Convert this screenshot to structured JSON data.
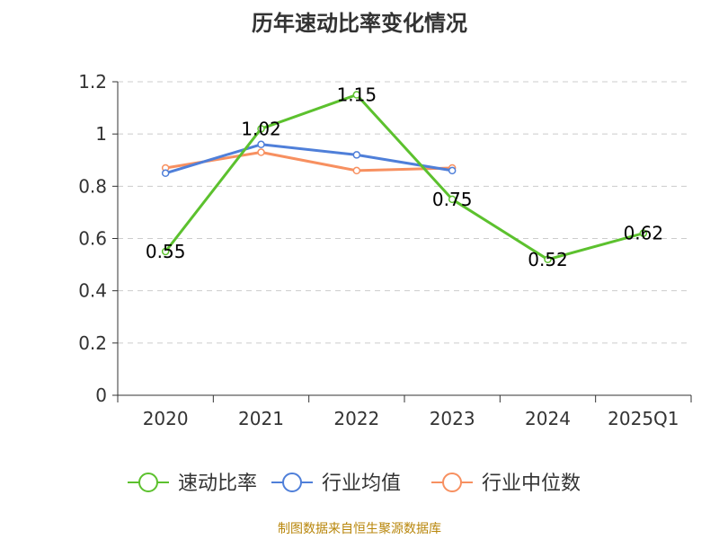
{
  "chart_data": {
    "type": "line",
    "title": "历年速动比率变化情况",
    "categories": [
      "2020",
      "2021",
      "2022",
      "2023",
      "2024",
      "2025Q1"
    ],
    "ylim": [
      0,
      1.2
    ],
    "yticks": [
      "0",
      "0.2",
      "0.4",
      "0.6",
      "0.8",
      "1",
      "1.2"
    ],
    "grid": true,
    "legend_position": "bottom",
    "series": [
      {
        "name": "速动比率",
        "color": "#5cc12e",
        "values": [
          0.55,
          1.02,
          1.15,
          0.75,
          0.52,
          0.62
        ],
        "labels": [
          "0.55",
          "1.02",
          "1.15",
          "0.75",
          "0.52",
          "0.62"
        ]
      },
      {
        "name": "行业均值",
        "color": "#4f7fd9",
        "values": [
          0.85,
          0.96,
          0.92,
          0.86,
          null,
          null
        ]
      },
      {
        "name": "行业中位数",
        "color": "#f79060",
        "values": [
          0.87,
          0.93,
          0.86,
          0.87,
          null,
          null
        ]
      }
    ]
  },
  "footer": {
    "source": "制图数据来自恒生聚源数据库"
  }
}
